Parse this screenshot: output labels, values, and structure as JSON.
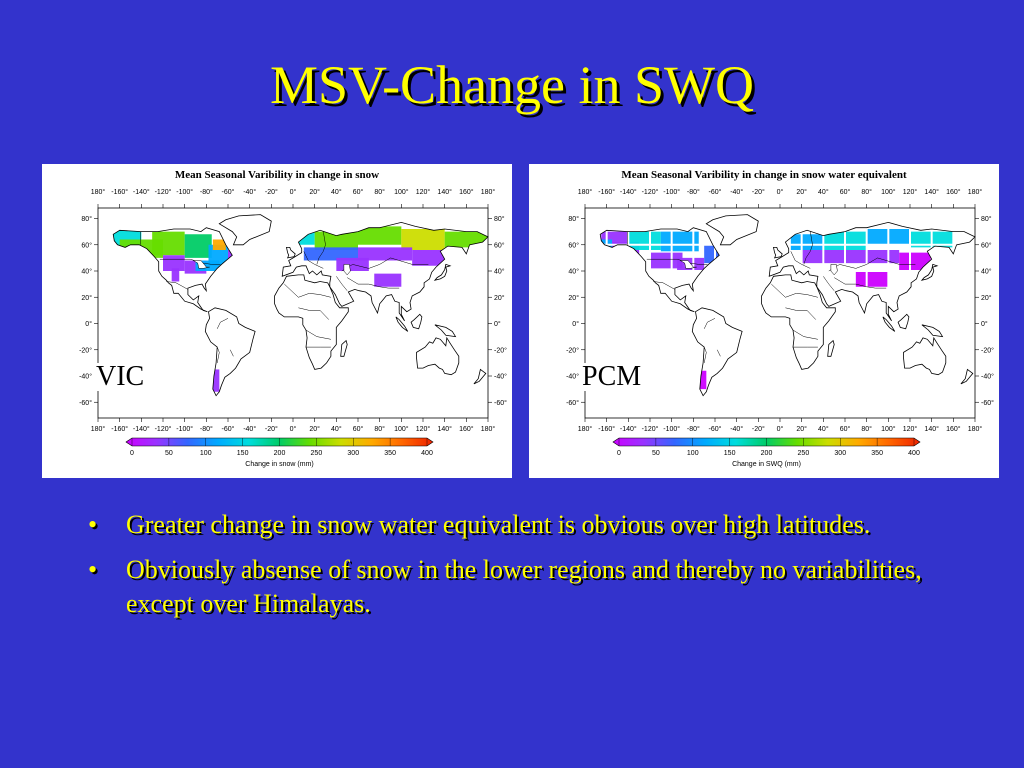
{
  "title": "MSV-Change in SWQ",
  "colors": {
    "background": "#3333cc",
    "title_text": "#ffff00",
    "colorbar": [
      "#cc00ff",
      "#9933ff",
      "#3366ff",
      "#00aaff",
      "#00dddd",
      "#00cc66",
      "#66dd00",
      "#ccdd00",
      "#ffaa00",
      "#ff6600",
      "#ee2200"
    ]
  },
  "maps": [
    {
      "title": "Mean Seasonal Varibility in change in snow",
      "model_label": "VIC",
      "colorbar_title": "Change in snow (mm)"
    },
    {
      "title": "Mean Seasonal Varibility in change in snow water equivalent",
      "model_label": "PCM",
      "colorbar_title": "Change in SWQ (mm)"
    }
  ],
  "lon_ticks": [
    "180°",
    "-160°",
    "-140°",
    "-120°",
    "-100°",
    "-80°",
    "-60°",
    "-40°",
    "-20°",
    "0°",
    "20°",
    "40°",
    "60°",
    "80°",
    "100°",
    "120°",
    "140°",
    "160°",
    "180°"
  ],
  "lat_ticks": [
    "80°",
    "60°",
    "40°",
    "20°",
    "0°",
    "-20°",
    "-40°",
    "-60°"
  ],
  "colorbar_ticks": [
    "0",
    "50",
    "100",
    "150",
    "200",
    "250",
    "300",
    "350",
    "400"
  ],
  "bullets": [
    "Greater change in snow water equivalent is obvious over high latitudes.",
    "Obviously absense of snow in the lower regions and thereby no variabilities, except over Himalayas."
  ]
}
